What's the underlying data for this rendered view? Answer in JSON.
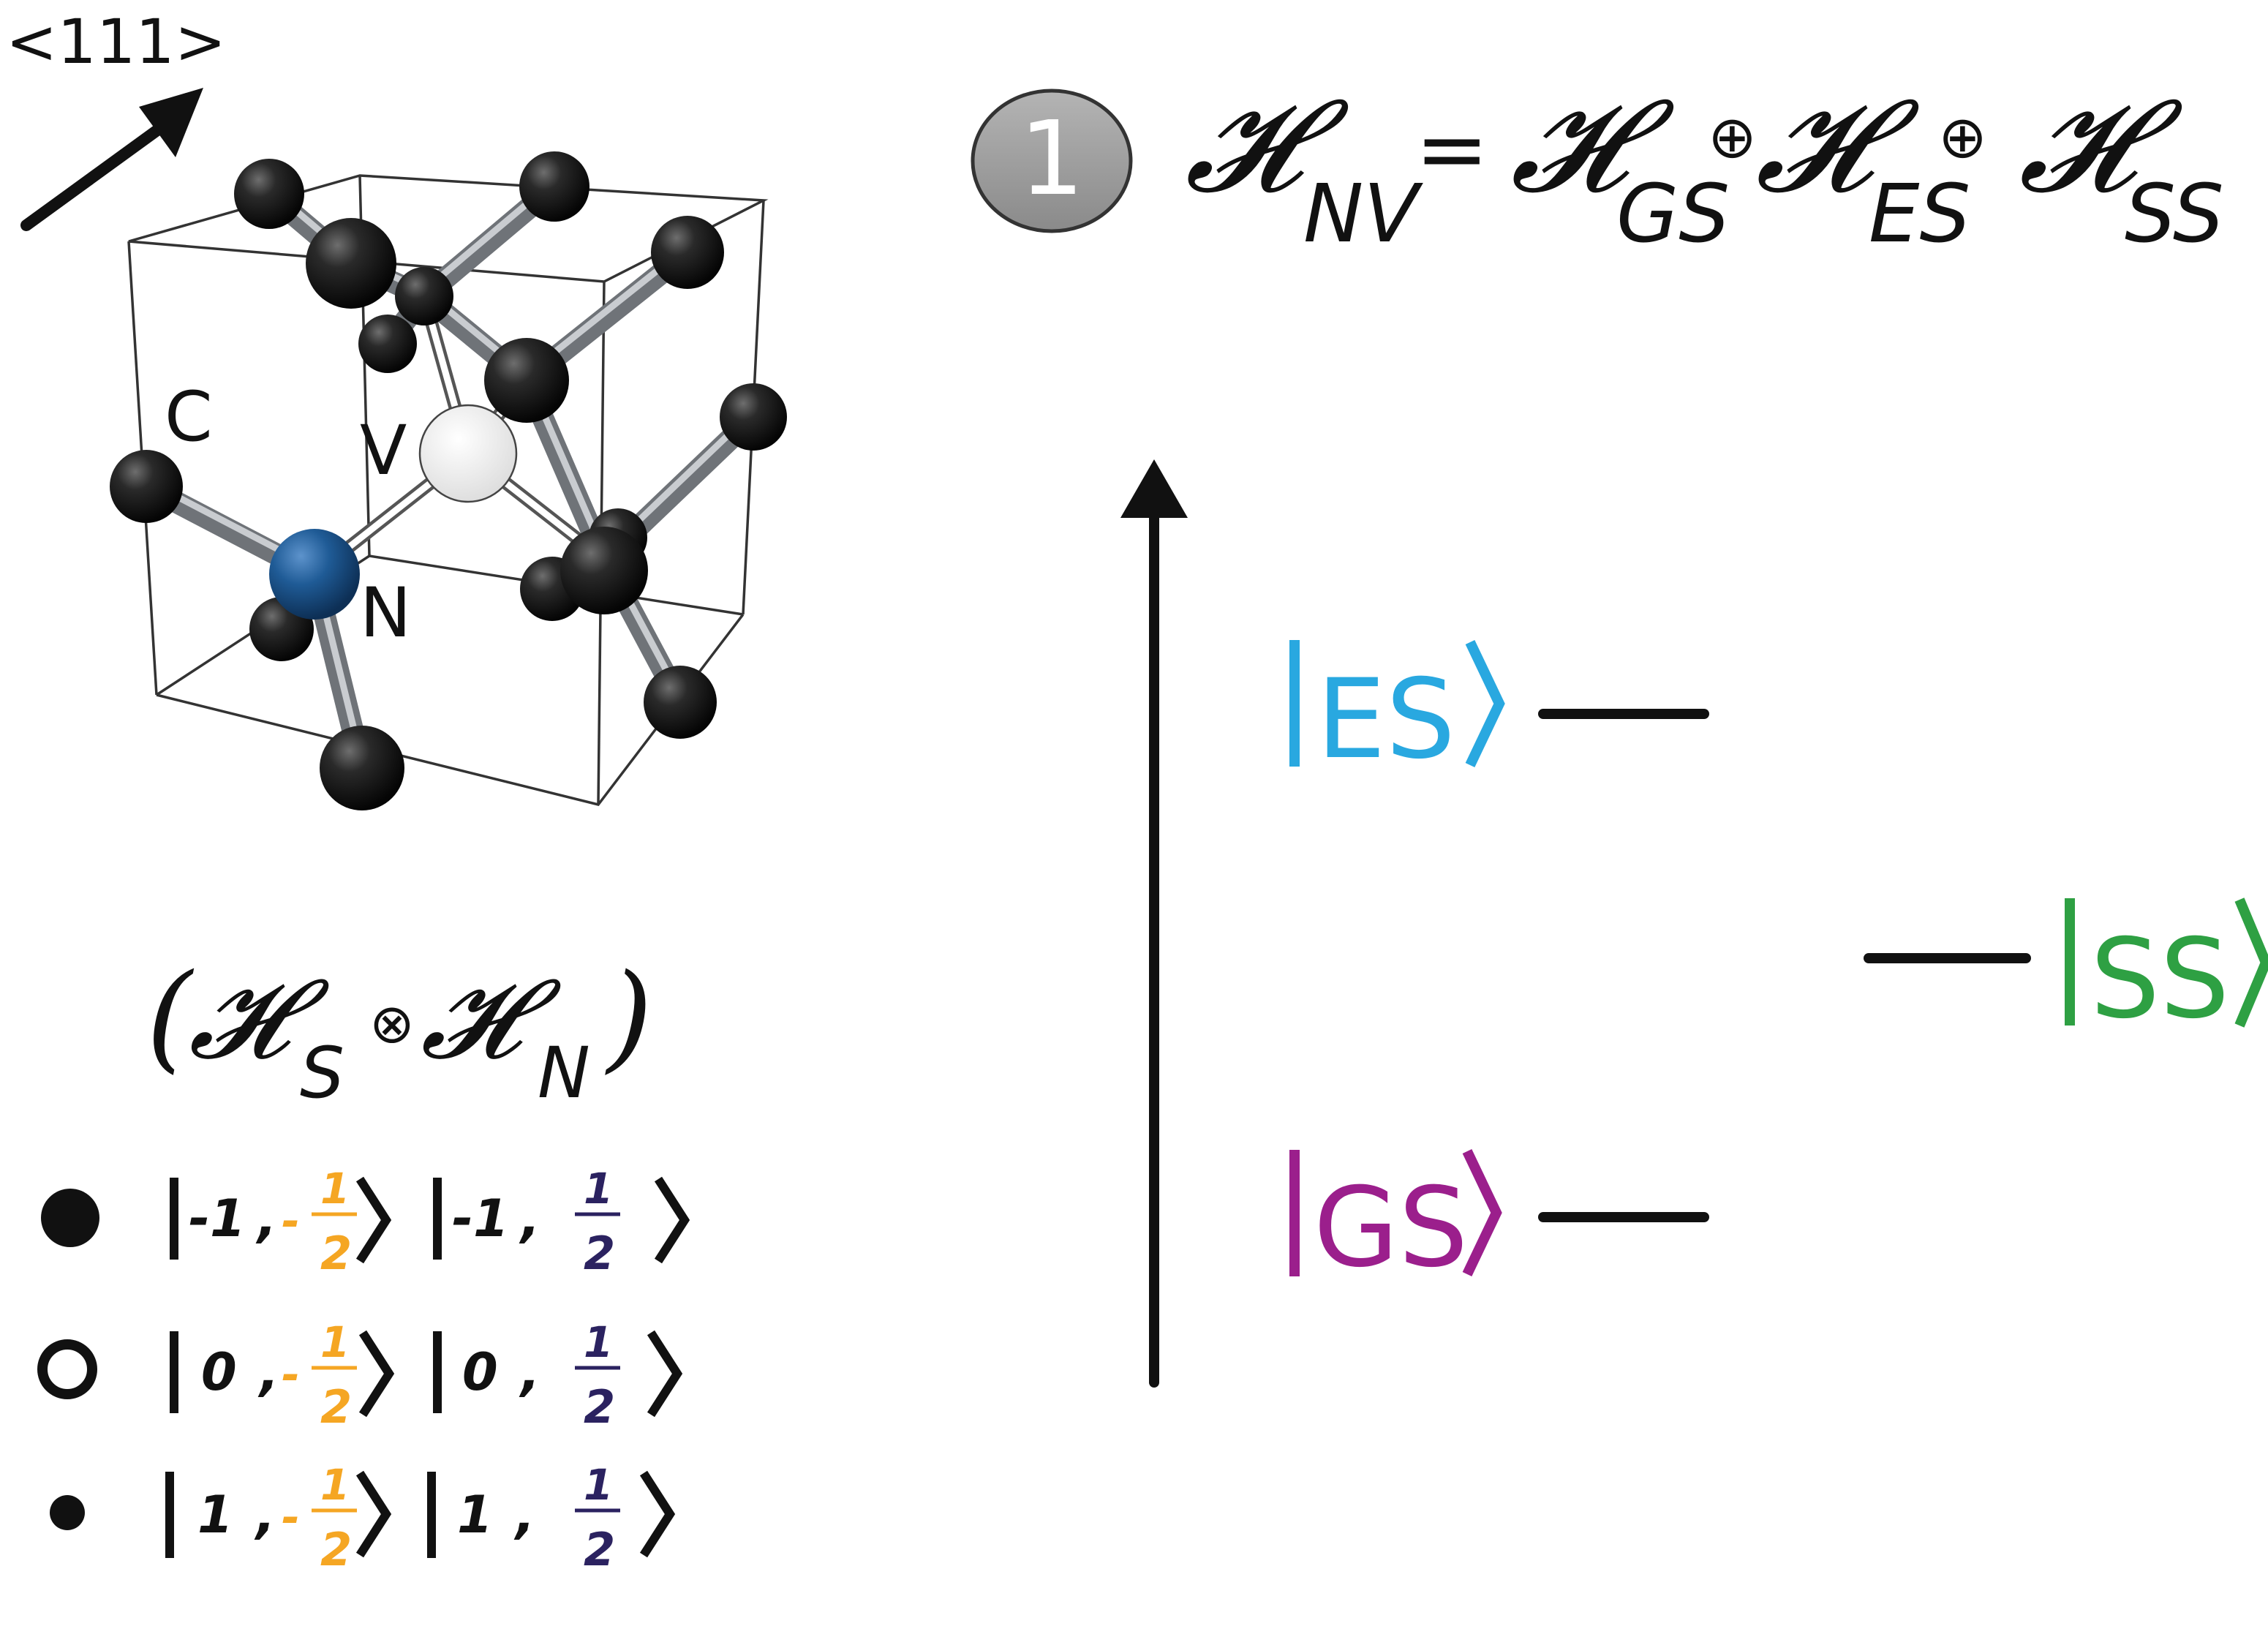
{
  "direction_label": "<111>",
  "atom_labels": {
    "carbon": "C",
    "vacancy": "V",
    "nitrogen": "N"
  },
  "step_badge": "1",
  "hamiltonian": {
    "lhs_symbol": "𝓗",
    "lhs_sub": "NV",
    "equals": "=",
    "terms": [
      {
        "symbol": "𝓗",
        "sub": "GS"
      },
      {
        "symbol": "𝓗",
        "sub": "ES"
      },
      {
        "symbol": "𝓗",
        "sub": "SS"
      }
    ],
    "oplus": "⊕"
  },
  "tensor": {
    "open": "(",
    "close": ")",
    "otimes": "⊗",
    "left": {
      "symbol": "𝓗",
      "sub": "S"
    },
    "right": {
      "symbol": "𝓗",
      "sub": "N"
    }
  },
  "states": [
    {
      "ms": "-1",
      "a_sign": "-",
      "a_num": "1",
      "a_den": "2",
      "b_ms": "-1",
      "b_num": "1",
      "b_den": "2"
    },
    {
      "ms": "0",
      "a_sign": "-",
      "a_num": "1",
      "a_den": "2",
      "b_ms": "0",
      "b_num": "1",
      "b_den": "2"
    },
    {
      "ms": "1",
      "a_sign": "-",
      "a_num": "1",
      "a_den": "2",
      "b_ms": "1",
      "b_num": "1",
      "b_den": "2"
    }
  ],
  "levels": {
    "es": {
      "label": "ES",
      "color": "#29a8e0"
    },
    "ss": {
      "label": "SS",
      "color": "#2ea043"
    },
    "gs": {
      "label": "GS",
      "color": "#9b1f8c"
    }
  },
  "colors": {
    "minus_half": "#f5a623",
    "plus_half": "#2b2260",
    "nitrogen": "#1f5b96",
    "carbon": "#1a1a1a",
    "badge": "#9a9a9a"
  }
}
